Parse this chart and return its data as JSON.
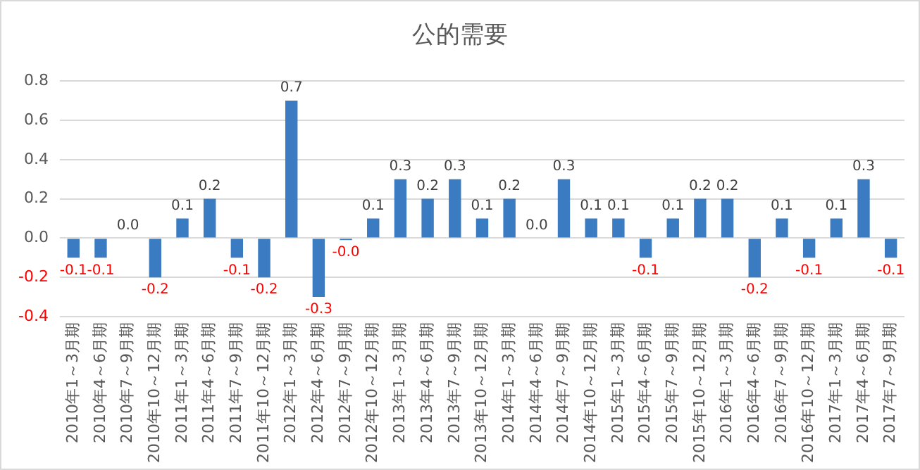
{
  "chart_data": {
    "type": "bar",
    "title": "公的需要",
    "categories": [
      "2010年1～3月期",
      "2010年4～6月期",
      "2010年7～9月期",
      "2010年10～12月期",
      "2011年1～3月期",
      "2011年4～6月期",
      "2011年7～9月期",
      "2011年10～12月期",
      "2012年1～3月期",
      "2012年4～6月期",
      "2012年7～9月期",
      "2012年10～12月期",
      "2013年1～3月期",
      "2013年4～6月期",
      "2013年7～9月期",
      "2013年10～12月期",
      "2014年1～3月期",
      "2014年4～6月期",
      "2014年7～9月期",
      "2014年10～12月期",
      "2015年1～3月期",
      "2015年4～6月期",
      "2015年7～9月期",
      "2015年10～12月期",
      "2016年1～3月期",
      "2016年4～6月期",
      "2016年7～9月期",
      "2016年10～12月期",
      "2017年1～3月期",
      "2017年4～6月期",
      "2017年7～9月期"
    ],
    "values": [
      -0.1,
      -0.1,
      0,
      -0.2,
      0.1,
      0.2,
      -0.1,
      -0.2,
      0.7,
      -0.3,
      -0.01,
      0.1,
      0.3,
      0.2,
      0.3,
      0.1,
      0.2,
      0,
      0.3,
      0.1,
      0.1,
      -0.1,
      0.1,
      0.2,
      0.2,
      -0.2,
      0.1,
      -0.1,
      0.1,
      0.3,
      -0.1
    ],
    "value_labels": [
      "-0.1",
      "-0.1",
      "0.0",
      "-0.2",
      "0.1",
      "0.2",
      "-0.1",
      "-0.2",
      "0.7",
      "-0.3",
      "-0.0",
      "0.1",
      "0.3",
      "0.2",
      "0.3",
      "0.1",
      "0.2",
      "0.0",
      "0.3",
      "0.1",
      "0.1",
      "-0.1",
      "0.1",
      "0.2",
      "0.2",
      "-0.2",
      "0.1",
      "-0.1",
      "0.1",
      "0.3",
      "-0.1"
    ],
    "color": "#3a7bc1",
    "ylim": [
      -0.4,
      0.8
    ],
    "yticks": [
      {
        "value": -0.4,
        "label": "-0.4"
      },
      {
        "value": -0.2,
        "label": "-0.2"
      },
      {
        "value": 0,
        "label": "0.0"
      },
      {
        "value": 0.2,
        "label": "0.2"
      },
      {
        "value": 0.4,
        "label": "0.4"
      },
      {
        "value": 0.6,
        "label": "0.6"
      },
      {
        "value": 0.8,
        "label": "0.8"
      }
    ],
    "grid": "y",
    "legend": false
  }
}
